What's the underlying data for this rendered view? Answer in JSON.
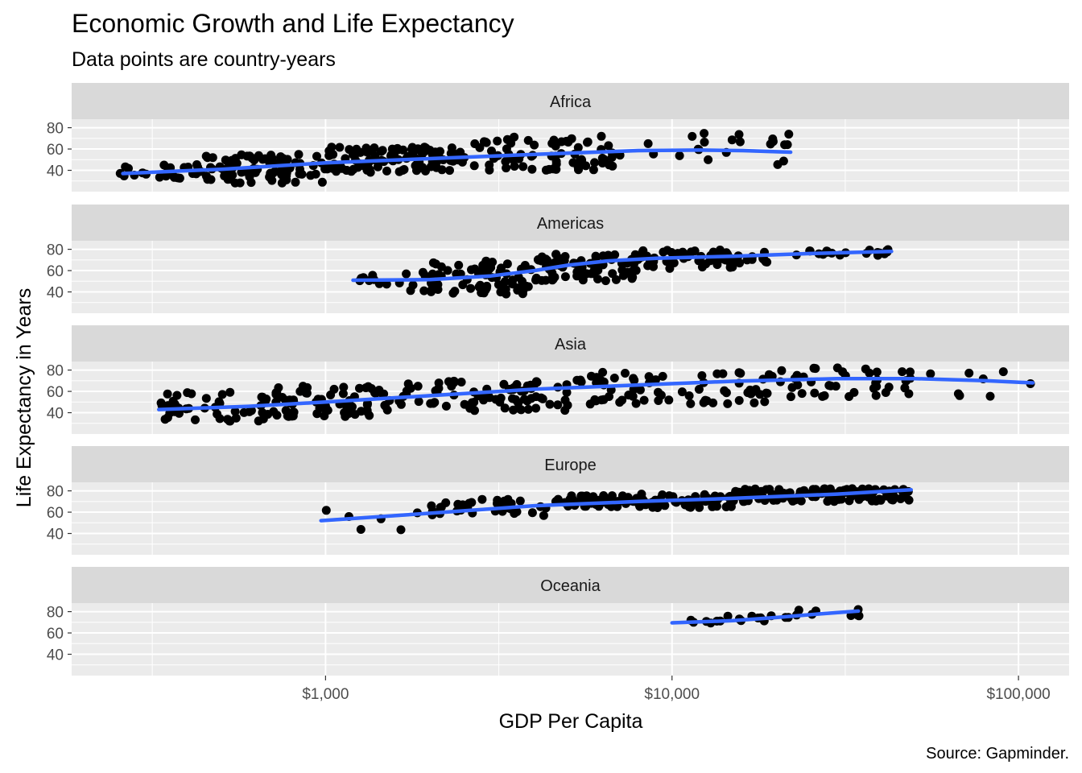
{
  "chart_data": {
    "type": "scatter",
    "title": "Economic Growth and Life Expectancy",
    "subtitle": "Data points are country-years",
    "xlabel": "GDP Per Capita",
    "ylabel": "Life Expectancy in Years",
    "caption": "Source: Gapminder.",
    "x_scale": "log10",
    "xlim": [
      185,
      140000
    ],
    "ylim": [
      20,
      88
    ],
    "x_ticks": [
      1000,
      10000,
      100000
    ],
    "x_tick_labels": [
      "$1,000",
      "$10,000",
      "$100,000"
    ],
    "y_ticks": [
      40,
      60,
      80
    ],
    "y_tick_labels": [
      "40",
      "60",
      "80"
    ],
    "grid": true,
    "facet_by": "continent",
    "colors": {
      "point": "#000000",
      "smooth": "#3366ff",
      "band": "#b3b3b3",
      "panel_bg": "#ebebeb",
      "strip_bg": "#d9d9d9",
      "grid": "#ffffff"
    },
    "panels": [
      {
        "label": "Africa",
        "point_bands": [
          {
            "x": [
              240,
              420
            ],
            "y": [
              30,
              45
            ],
            "n": 20
          },
          {
            "x": [
              420,
              1000
            ],
            "y": [
              28,
              55
            ],
            "n": 90
          },
          {
            "x": [
              1000,
              2500
            ],
            "y": [
              38,
              62
            ],
            "n": 110
          },
          {
            "x": [
              2500,
              7000
            ],
            "y": [
              40,
              72
            ],
            "n": 70
          },
          {
            "x": [
              7000,
              22000
            ],
            "y": [
              45,
              75
            ],
            "n": 22
          }
        ],
        "smooth": {
          "x": [
            260,
            500,
            1000,
            2000,
            4000,
            8000,
            12000,
            16000,
            22000
          ],
          "y": [
            37,
            41,
            47,
            51,
            55,
            58.5,
            59,
            58.5,
            57
          ]
        }
      },
      {
        "label": "Americas",
        "point_bands": [
          {
            "x": [
              1200,
              2000
            ],
            "y": [
              40,
              60
            ],
            "n": 15
          },
          {
            "x": [
              2000,
              4000
            ],
            "y": [
              38,
              70
            ],
            "n": 70
          },
          {
            "x": [
              4000,
              8000
            ],
            "y": [
              50,
              76
            ],
            "n": 80
          },
          {
            "x": [
              8000,
              20000
            ],
            "y": [
              62,
              80
            ],
            "n": 60
          },
          {
            "x": [
              20000,
              43000
            ],
            "y": [
              74,
              80
            ],
            "n": 20
          }
        ],
        "smooth": {
          "x": [
            1200,
            2000,
            3000,
            4000,
            5000,
            6500,
            9000,
            15000,
            25000,
            43000
          ],
          "y": [
            51,
            51.5,
            55,
            60,
            65,
            69,
            71.5,
            73.5,
            76,
            78
          ]
        }
      },
      {
        "label": "Asia",
        "point_bands": [
          {
            "x": [
              330,
              700
            ],
            "y": [
              32,
              60
            ],
            "n": 45
          },
          {
            "x": [
              700,
              1500
            ],
            "y": [
              36,
              65
            ],
            "n": 70
          },
          {
            "x": [
              1500,
              5000
            ],
            "y": [
              42,
              72
            ],
            "n": 80
          },
          {
            "x": [
              5000,
              20000
            ],
            "y": [
              48,
              78
            ],
            "n": 70
          },
          {
            "x": [
              20000,
              50000
            ],
            "y": [
              55,
              83
            ],
            "n": 40
          },
          {
            "x": [
              50000,
              113000
            ],
            "y": [
              55,
              80
            ],
            "n": 8
          }
        ],
        "smooth": {
          "x": [
            330,
            600,
            1000,
            2000,
            4000,
            8000,
            15000,
            30000,
            50000,
            80000,
            110000
          ],
          "y": [
            43,
            46,
            50,
            56,
            62,
            66,
            69.5,
            72,
            72,
            70,
            68
          ]
        }
      },
      {
        "label": "Europe",
        "point_bands": [
          {
            "x": [
              970,
              2000
            ],
            "y": [
              43,
              62
            ],
            "n": 6
          },
          {
            "x": [
              2000,
              5000
            ],
            "y": [
              56,
              73
            ],
            "n": 40
          },
          {
            "x": [
              5000,
              15000
            ],
            "y": [
              64,
              77
            ],
            "n": 110
          },
          {
            "x": [
              15000,
              49000
            ],
            "y": [
              70,
              82
            ],
            "n": 120
          }
        ],
        "smooth": {
          "x": [
            970,
            2000,
            4000,
            8000,
            15000,
            30000,
            49000
          ],
          "y": [
            52,
            59,
            66,
            70,
            73,
            77,
            81
          ]
        }
      },
      {
        "label": "Oceania",
        "point_bands": [
          {
            "x": [
              10000,
              14000
            ],
            "y": [
              69,
              72
            ],
            "n": 6
          },
          {
            "x": [
              14000,
              22000
            ],
            "y": [
              71,
              77
            ],
            "n": 10
          },
          {
            "x": [
              22000,
              35000
            ],
            "y": [
              76,
              82
            ],
            "n": 8
          }
        ],
        "smooth": {
          "x": [
            10000,
            15000,
            20000,
            27000,
            34500
          ],
          "y": [
            69.5,
            71.5,
            74.5,
            78,
            80.5
          ]
        }
      }
    ]
  }
}
